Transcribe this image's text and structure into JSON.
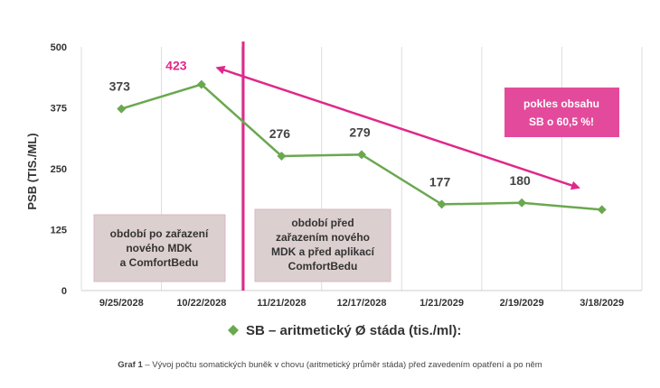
{
  "chart_data": {
    "type": "line",
    "ylabel": "PSB (TIS./ML)",
    "ylim": [
      0,
      500
    ],
    "yticks": [
      0,
      125,
      250,
      375,
      500
    ],
    "grid": true,
    "categories": [
      "9/25/2028",
      "10/22/2028",
      "11/21/2028",
      "12/17/2028",
      "1/21/2029",
      "2/19/2029",
      "3/18/2029"
    ],
    "series": [
      {
        "name": "SB – aritmetický Ø stáda (tis./ml):",
        "color": "#6aa84f",
        "values": [
          373,
          423,
          276,
          279,
          177,
          180,
          166
        ],
        "labels": [
          "373",
          "423",
          "276",
          "279",
          "177",
          "180",
          ""
        ]
      }
    ],
    "highlight_color": "#e0288a",
    "legend_position": "bottom",
    "annotations": {
      "box_left": {
        "lines": [
          "období po zařazení",
          "nového MDK",
          "a ComfortBedu"
        ]
      },
      "box_right": {
        "lines": [
          "období před",
          "zařazením nového",
          "MDK a před aplikací",
          "ComfortBedu"
        ]
      },
      "callout": {
        "lines": [
          "pokles obsahu",
          "SB o 60,5 %!"
        ]
      }
    },
    "caption": {
      "prefix": "Graf 1",
      "text": " – Vývoj počtu somatických buněk v chovu (aritmetický průměr stáda) před zavedením opatření a po něm"
    }
  }
}
